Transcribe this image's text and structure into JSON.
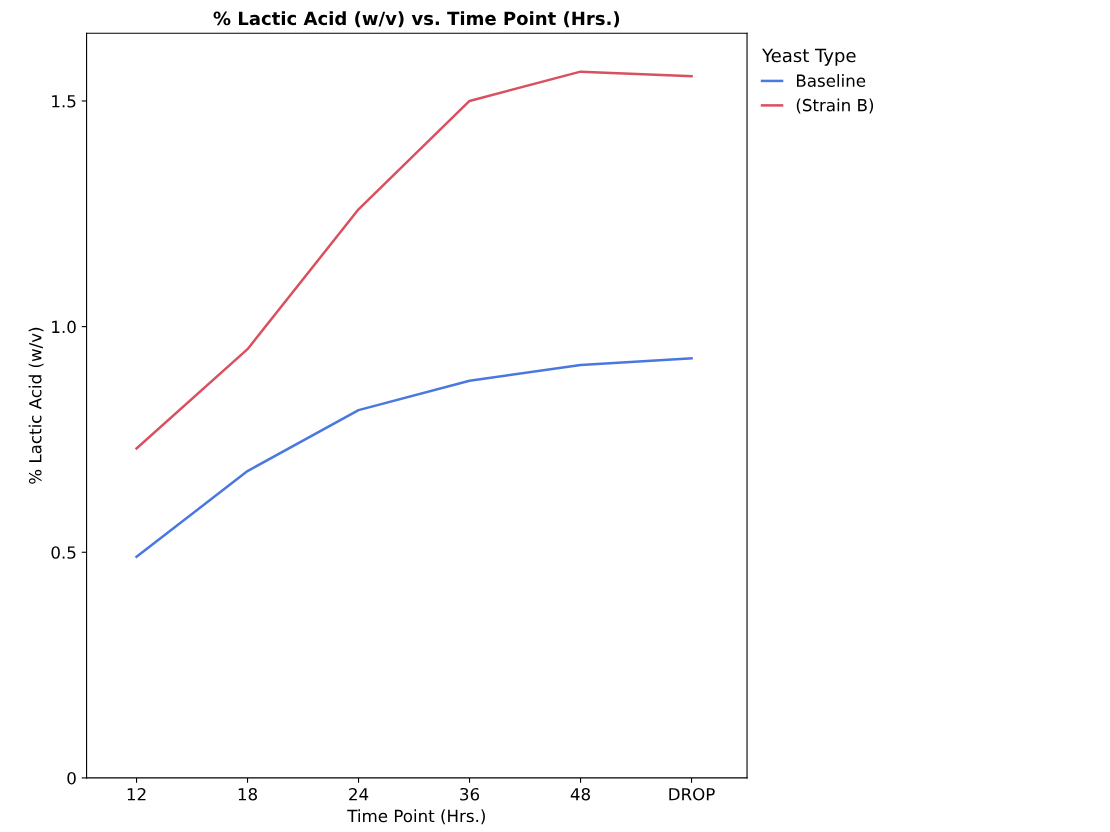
{
  "chart_data": {
    "type": "line",
    "title": "% Lactic Acid (w/v) vs. Time Point (Hrs.)",
    "xlabel": "Time Point (Hrs.)",
    "ylabel": "% Lactic Acid (w/v)",
    "legend_title": "Yeast Type",
    "categories": [
      "12",
      "18",
      "24",
      "36",
      "48",
      "DROP"
    ],
    "series": [
      {
        "name": "Baseline",
        "color": "#4a78e0",
        "values": [
          0.49,
          0.68,
          0.815,
          0.88,
          0.915,
          0.93
        ]
      },
      {
        "name": "(Strain B)",
        "color": "#d9505e",
        "values": [
          0.73,
          0.95,
          1.26,
          1.5,
          1.565,
          1.555
        ]
      }
    ],
    "ylim": [
      0,
      1.65
    ],
    "yticks": [
      0,
      0.5,
      {
        "value": 1.0,
        "label": "1.0"
      },
      1.5
    ],
    "grid": false,
    "legend": "top right",
    "marker": "none",
    "line_style": "solid"
  }
}
